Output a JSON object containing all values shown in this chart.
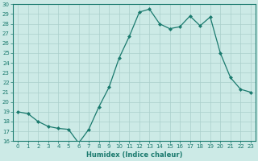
{
  "x": [
    0,
    1,
    2,
    3,
    4,
    5,
    6,
    7,
    8,
    9,
    10,
    11,
    12,
    13,
    14,
    15,
    16,
    17,
    18,
    19,
    20,
    21,
    22,
    23
  ],
  "y": [
    19,
    18.8,
    18,
    17.5,
    17.3,
    17.2,
    15.8,
    17.2,
    19.5,
    21.5,
    24.5,
    26.7,
    29.2,
    29.5,
    28.0,
    27.5,
    27.7,
    28.8,
    27.8,
    28.7,
    25.0,
    22.5,
    21.3,
    21.0
  ],
  "line_color": "#1a7a6e",
  "bg_color": "#cceae6",
  "grid_color": "#aacfcb",
  "xlabel": "Humidex (Indice chaleur)",
  "ylim": [
    16,
    30
  ],
  "xlim_min": -0.5,
  "xlim_max": 23.5,
  "yticks": [
    16,
    17,
    18,
    19,
    20,
    21,
    22,
    23,
    24,
    25,
    26,
    27,
    28,
    29,
    30
  ],
  "xticks": [
    0,
    1,
    2,
    3,
    4,
    5,
    6,
    7,
    8,
    9,
    10,
    11,
    12,
    13,
    14,
    15,
    16,
    17,
    18,
    19,
    20,
    21,
    22,
    23
  ],
  "tick_fontsize": 5,
  "xlabel_fontsize": 6,
  "marker_size": 2.0,
  "linewidth": 0.9
}
